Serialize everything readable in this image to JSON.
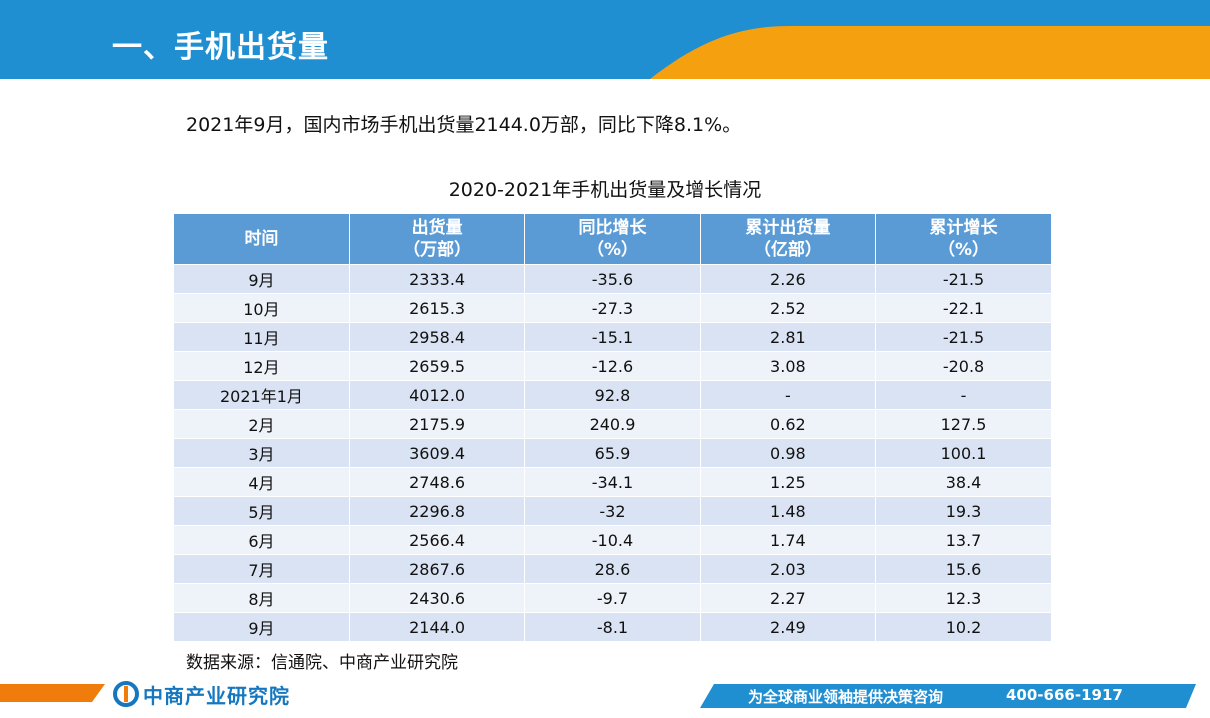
{
  "header": {
    "title": "一、手机出货量"
  },
  "summary": "2021年9月，国内市场手机出货量2144.0万部，同比下降8.1%。",
  "table": {
    "title": "2020-2021年手机出货量及增长情况",
    "columns": [
      {
        "line1": "时间",
        "line2": ""
      },
      {
        "line1": "出货量",
        "line2": "（万部）"
      },
      {
        "line1": "同比增长",
        "line2": "（%）"
      },
      {
        "line1": "累计出货量",
        "line2": "（亿部）"
      },
      {
        "line1": "累计增长",
        "line2": "（%）"
      }
    ],
    "rows": [
      [
        "9月",
        "2333.4",
        "-35.6",
        "2.26",
        "-21.5"
      ],
      [
        "10月",
        "2615.3",
        "-27.3",
        "2.52",
        "-22.1"
      ],
      [
        "11月",
        "2958.4",
        "-15.1",
        "2.81",
        "-21.5"
      ],
      [
        "12月",
        "2659.5",
        "-12.6",
        "3.08",
        "-20.8"
      ],
      [
        "2021年1月",
        "4012.0",
        "92.8",
        "-",
        "-"
      ],
      [
        "2月",
        "2175.9",
        "240.9",
        "0.62",
        "127.5"
      ],
      [
        "3月",
        "3609.4",
        "65.9",
        "0.98",
        "100.1"
      ],
      [
        "4月",
        "2748.6",
        "-34.1",
        "1.25",
        "38.4"
      ],
      [
        "5月",
        "2296.8",
        "-32",
        "1.48",
        "19.3"
      ],
      [
        "6月",
        "2566.4",
        "-10.4",
        "1.74",
        "13.7"
      ],
      [
        "7月",
        "2867.6",
        "28.6",
        "2.03",
        "15.6"
      ],
      [
        "8月",
        "2430.6",
        "-9.7",
        "2.27",
        "12.3"
      ],
      [
        "9月",
        "2144.0",
        "-8.1",
        "2.49",
        "10.2"
      ]
    ]
  },
  "source": "数据来源：信通院、中商产业研究院",
  "footer": {
    "logo_text": "中商产业研究院",
    "slogan": "为全球商业领袖提供决策咨询",
    "phone": "400-666-1917"
  },
  "colors": {
    "header_blue": "#1f8fd2",
    "accent_orange": "#f5a00f",
    "table_header": "#5b9bd5",
    "row_odd": "#dae3f3",
    "row_even": "#eef2f9"
  }
}
